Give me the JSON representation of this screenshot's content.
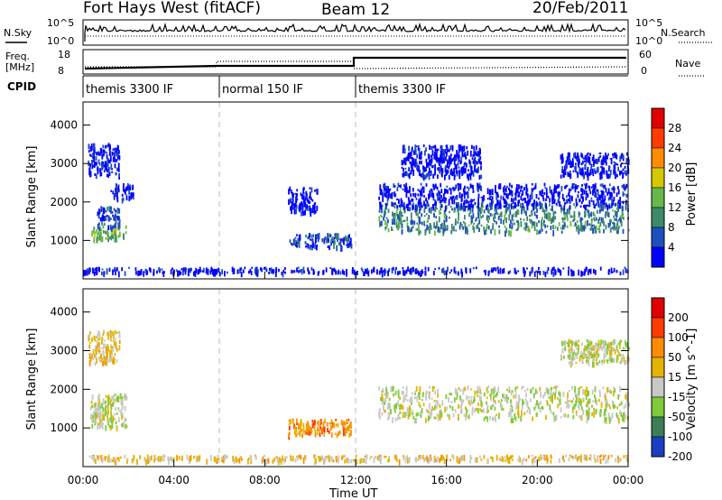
{
  "header": {
    "site": "Fort Hays West (fitACF)",
    "beam": "Beam 12",
    "date": "20/Feb/2011"
  },
  "top_panels": {
    "nsky_label": "N.Sky",
    "nsearch_label": "N.Search",
    "freq_label_1": "Freq.",
    "freq_label_2": "[MHz]",
    "nave_label": "Nave",
    "cpid_label": "CPID",
    "nsky_ticks": [
      "10^5",
      "10^0"
    ],
    "nsearch_ticks": [
      "10^5",
      "10^0"
    ],
    "freq_ticks": [
      "18",
      "8"
    ],
    "nave_ticks": [
      "60",
      "0"
    ]
  },
  "cpid_segments": [
    {
      "label": "themis 3300 IF",
      "start_h": 0,
      "end_h": 6
    },
    {
      "label": "normal 150 IF",
      "start_h": 6,
      "end_h": 12
    },
    {
      "label": "themis 3300 IF",
      "start_h": 12,
      "end_h": 24
    }
  ],
  "colors": {
    "power": [
      "#0000ff",
      "#1f4fbf",
      "#3c8a6a",
      "#66b84a",
      "#d6c800",
      "#ff8c00",
      "#ff3b00",
      "#e00000"
    ],
    "velocity": [
      "#1a3fc2",
      "#3e7d56",
      "#7fca3a",
      "#c8c8c8",
      "#e4b400",
      "#ff8c00",
      "#ff3b00",
      "#e00000"
    ]
  },
  "chart_data": [
    {
      "type": "heatmap",
      "panel": "power",
      "ylabel": "Slant Range [km]",
      "xlim": [
        0,
        24
      ],
      "ylim": [
        0,
        4600
      ],
      "y_ticks": [
        "1000",
        "2000",
        "3000",
        "4000"
      ],
      "colorbar_label": "Power [dB]",
      "colorbar_ticks": [
        "4",
        "8",
        "12",
        "16",
        "20",
        "24",
        "28"
      ],
      "regions": [
        {
          "x": [
            0.3,
            1.9
          ],
          "y": [
            1050,
            1400
          ],
          "level": 3
        },
        {
          "x": [
            0.6,
            1.6
          ],
          "y": [
            1350,
            1900
          ],
          "level": 1
        },
        {
          "x": [
            1.2,
            2.2
          ],
          "y": [
            2100,
            2500
          ],
          "level": 0
        },
        {
          "x": [
            0.2,
            1.6
          ],
          "y": [
            2700,
            3550
          ],
          "level": 0
        },
        {
          "x": [
            9.0,
            11.8
          ],
          "y": [
            850,
            1200
          ],
          "level": 1
        },
        {
          "x": [
            9.0,
            10.3
          ],
          "y": [
            1750,
            2400
          ],
          "level": 0
        },
        {
          "x": [
            13.0,
            24.0
          ],
          "y": [
            1250,
            2000
          ],
          "level": 2
        },
        {
          "x": [
            13.0,
            24.0
          ],
          "y": [
            1900,
            2500
          ],
          "level": 0
        },
        {
          "x": [
            14.0,
            17.5
          ],
          "y": [
            2700,
            3500
          ],
          "level": 0
        },
        {
          "x": [
            21.0,
            24.0
          ],
          "y": [
            2700,
            3300
          ],
          "level": 0
        },
        {
          "x": [
            0,
            24
          ],
          "y": [
            180,
            320
          ],
          "level": 0
        }
      ]
    },
    {
      "type": "heatmap",
      "panel": "velocity",
      "ylabel": "Slant Range [km]",
      "xlabel": "Time UT",
      "xlim": [
        0,
        24
      ],
      "ylim": [
        0,
        4600
      ],
      "y_ticks": [
        "1000",
        "2000",
        "3000",
        "4000"
      ],
      "x_ticks": [
        "00:00",
        "04:00",
        "08:00",
        "12:00",
        "16:00",
        "20:00",
        "00:00"
      ],
      "colorbar_label": "Velocity [m s^-1]",
      "colorbar_ticks": [
        "200",
        "100",
        "50",
        "15",
        "-15",
        "-50",
        "-100",
        "-200"
      ],
      "regions": [
        {
          "x": [
            0.3,
            1.9
          ],
          "y": [
            1050,
            1900
          ],
          "level": 3
        },
        {
          "x": [
            0.2,
            1.6
          ],
          "y": [
            2700,
            3550
          ],
          "level": 4
        },
        {
          "x": [
            9.0,
            11.8
          ],
          "y": [
            850,
            1250
          ],
          "level": 5
        },
        {
          "x": [
            13.0,
            24.0
          ],
          "y": [
            1250,
            2100
          ],
          "level": 3
        },
        {
          "x": [
            21.0,
            24.0
          ],
          "y": [
            2700,
            3300
          ],
          "level": 3
        },
        {
          "x": [
            0,
            24
          ],
          "y": [
            180,
            320
          ],
          "level": 4
        }
      ]
    }
  ]
}
